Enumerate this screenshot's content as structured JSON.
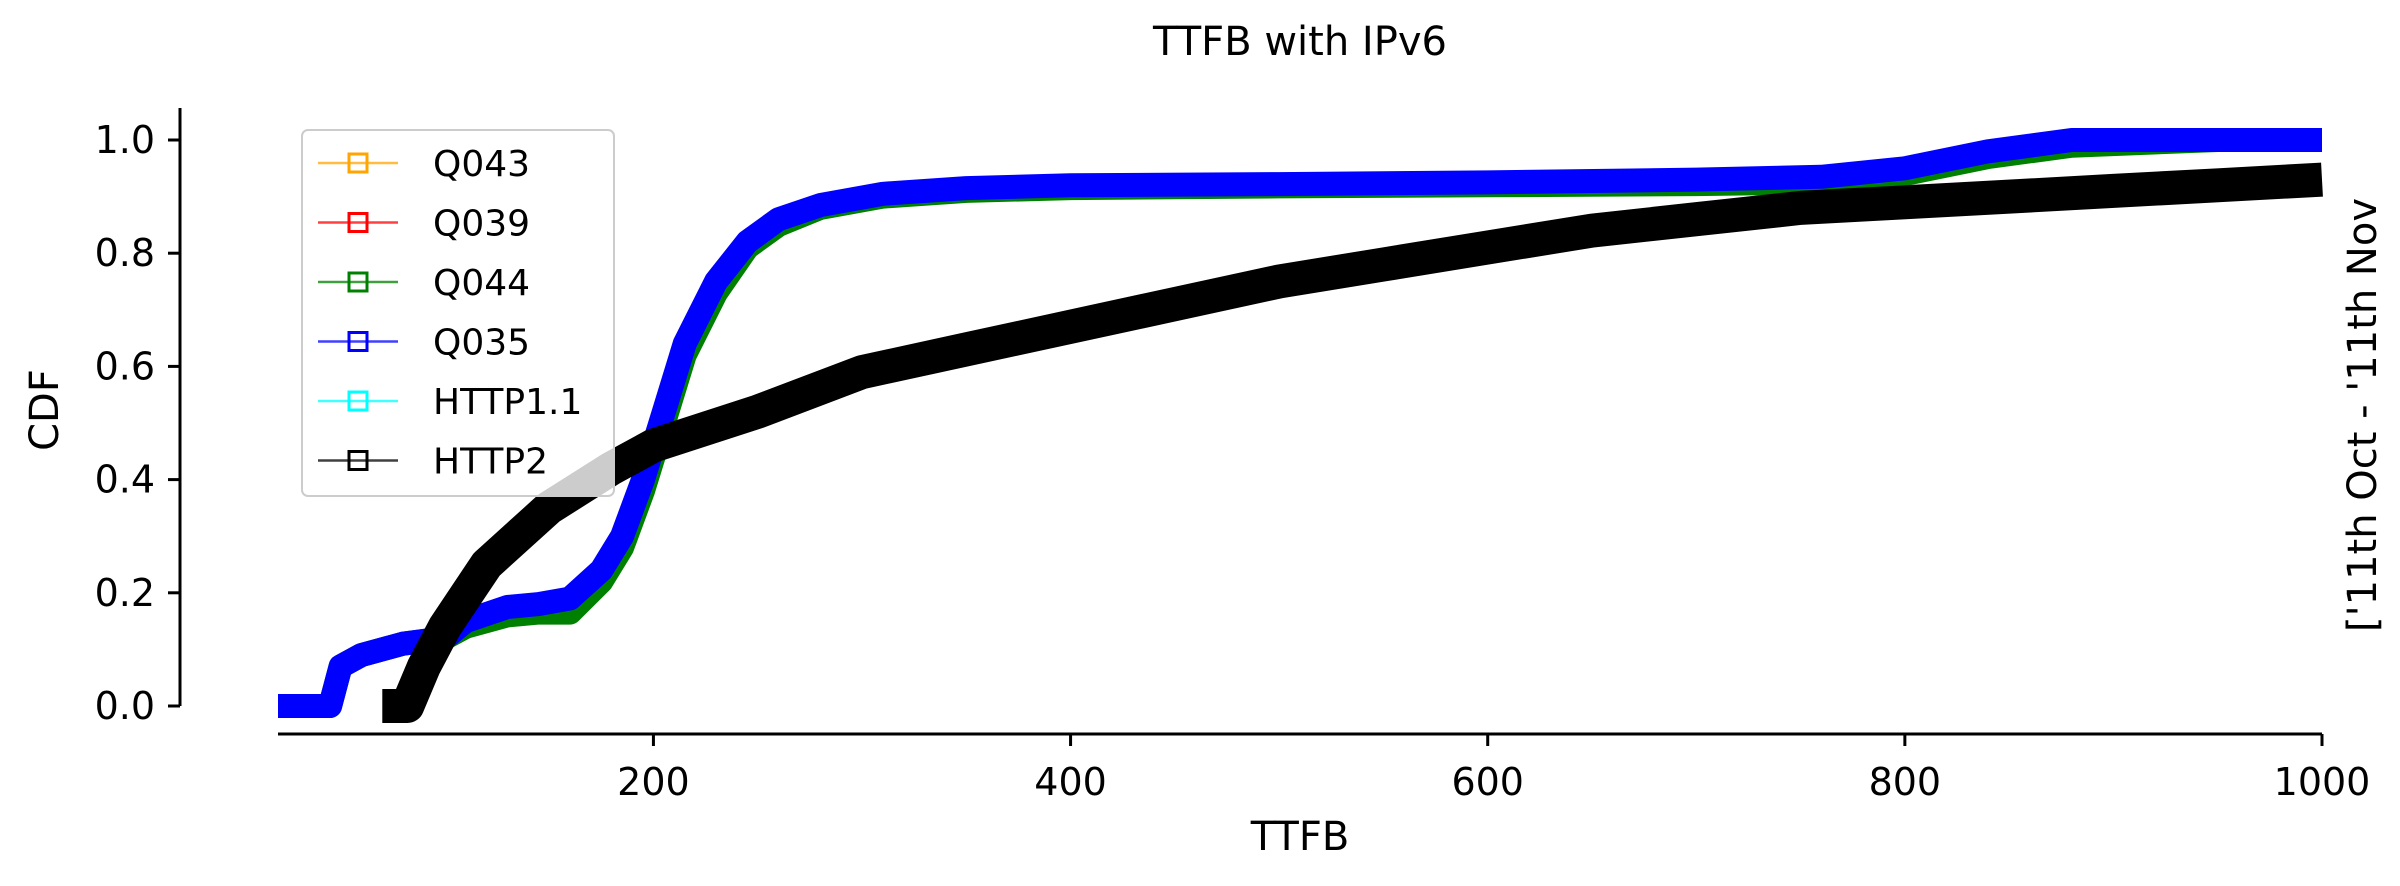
{
  "chart_data": {
    "type": "line",
    "title": "TTFB with IPv6",
    "xlabel": "TTFB",
    "ylabel": "CDF",
    "side_label": "['11th Oct - '11th Nov",
    "xlim": [
      20,
      1000
    ],
    "ylim": [
      0,
      1.0
    ],
    "x_ticks": [
      200,
      400,
      600,
      800,
      1000
    ],
    "y_ticks": [
      0.0,
      0.2,
      0.4,
      0.6,
      0.8,
      1.0
    ],
    "x_tick_labels": [
      "200",
      "400",
      "600",
      "800",
      "1000"
    ],
    "y_tick_labels": [
      "0.0",
      "0.2",
      "0.4",
      "0.6",
      "0.8",
      "1.0"
    ],
    "grid": false,
    "legend": "upper-left",
    "series": [
      {
        "name": "Q043",
        "color": "#ffa500",
        "width": 6,
        "x": [],
        "y": []
      },
      {
        "name": "Q039",
        "color": "#ff0000",
        "width": 6,
        "x": [],
        "y": []
      },
      {
        "name": "Q044",
        "color": "#008000",
        "width": 24,
        "x": [
          20,
          45,
          50,
          60,
          80,
          100,
          110,
          130,
          145,
          160,
          175,
          185,
          195,
          205,
          215,
          230,
          245,
          260,
          280,
          310,
          350,
          400,
          500,
          600,
          700,
          760,
          800,
          840,
          880,
          950,
          1000
        ],
        "y": [
          0.0,
          0.0,
          0.07,
          0.09,
          0.11,
          0.12,
          0.14,
          0.16,
          0.165,
          0.165,
          0.22,
          0.28,
          0.38,
          0.5,
          0.62,
          0.73,
          0.81,
          0.85,
          0.88,
          0.9,
          0.91,
          0.915,
          0.918,
          0.92,
          0.922,
          0.925,
          0.94,
          0.97,
          0.99,
          1.0,
          1.0
        ]
      },
      {
        "name": "Q035",
        "color": "#0000ff",
        "width": 24,
        "x": [
          20,
          45,
          50,
          60,
          80,
          100,
          110,
          130,
          145,
          160,
          175,
          185,
          195,
          205,
          215,
          230,
          245,
          260,
          280,
          310,
          350,
          400,
          500,
          600,
          700,
          760,
          800,
          840,
          880,
          950,
          1000
        ],
        "y": [
          0.0,
          0.0,
          0.07,
          0.09,
          0.11,
          0.12,
          0.15,
          0.175,
          0.18,
          0.19,
          0.24,
          0.3,
          0.4,
          0.52,
          0.64,
          0.75,
          0.82,
          0.86,
          0.885,
          0.905,
          0.915,
          0.92,
          0.922,
          0.925,
          0.93,
          0.935,
          0.95,
          0.98,
          1.0,
          1.0,
          1.0
        ]
      },
      {
        "name": "HTTP1.1",
        "color": "#00ffff",
        "width": 6,
        "x": [],
        "y": []
      },
      {
        "name": "HTTP2",
        "color": "#000000",
        "width": 34,
        "x": [
          70,
          82,
          90,
          100,
          120,
          150,
          180,
          200,
          250,
          300,
          350,
          400,
          450,
          500,
          550,
          600,
          650,
          700,
          750,
          800,
          850,
          900,
          950,
          1000
        ],
        "y": [
          0.0,
          0.0,
          0.07,
          0.14,
          0.25,
          0.35,
          0.42,
          0.46,
          0.52,
          0.59,
          0.63,
          0.67,
          0.71,
          0.75,
          0.78,
          0.81,
          0.84,
          0.86,
          0.88,
          0.89,
          0.9,
          0.91,
          0.92,
          0.93
        ]
      }
    ]
  }
}
